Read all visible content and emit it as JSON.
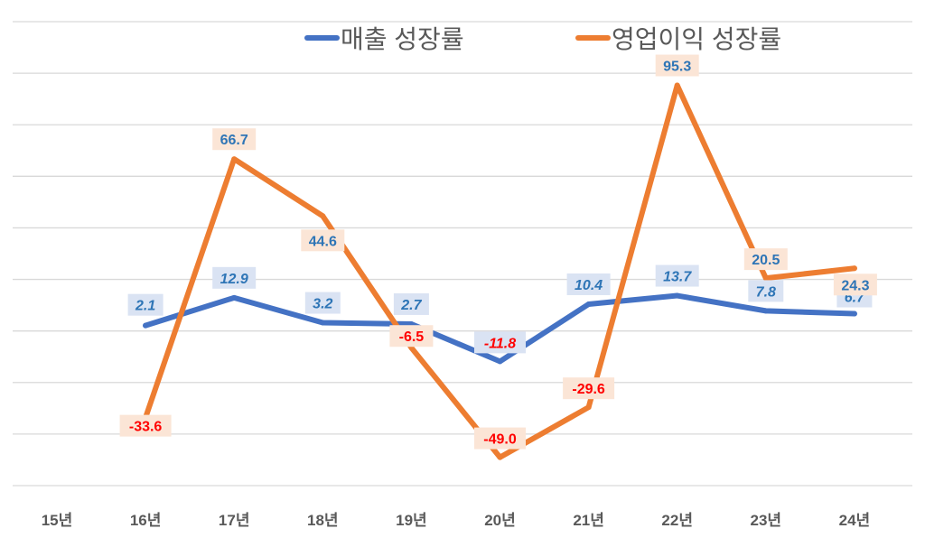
{
  "chart_data": {
    "type": "line",
    "title": "",
    "xlabel": "",
    "ylabel": "",
    "categories": [
      "15년",
      "16년",
      "17년",
      "18년",
      "19년",
      "20년",
      "21년",
      "22년",
      "23년",
      "24년"
    ],
    "ylim": [
      -60,
      120
    ],
    "ytick_step": 20,
    "grid": true,
    "legend_position": "top",
    "series": [
      {
        "name": "매출 성장률",
        "color": "#4472c4",
        "label_bg": "#dae3f3",
        "values": [
          null,
          2.1,
          12.9,
          3.2,
          2.7,
          -11.8,
          10.4,
          13.7,
          7.8,
          6.7
        ],
        "labels": [
          "",
          "2.1",
          "12.9",
          "3.2",
          "2.7",
          "-11.8",
          "10.4",
          "13.7",
          "7.8",
          "6.7"
        ]
      },
      {
        "name": "영업이익 성장률",
        "color": "#ed7d31",
        "label_bg": "#fbe5d6",
        "values": [
          null,
          -33.6,
          66.7,
          44.6,
          -6.5,
          -49.0,
          -29.6,
          95.3,
          20.5,
          24.3
        ],
        "labels": [
          "",
          "-33.6",
          "66.7",
          "44.6",
          "-6.5",
          "-49.0",
          "-29.6",
          "95.3",
          "20.5",
          "24.3"
        ]
      }
    ],
    "label_colors": {
      "positive": "#2e75b6",
      "negative": "#ff0000"
    }
  }
}
